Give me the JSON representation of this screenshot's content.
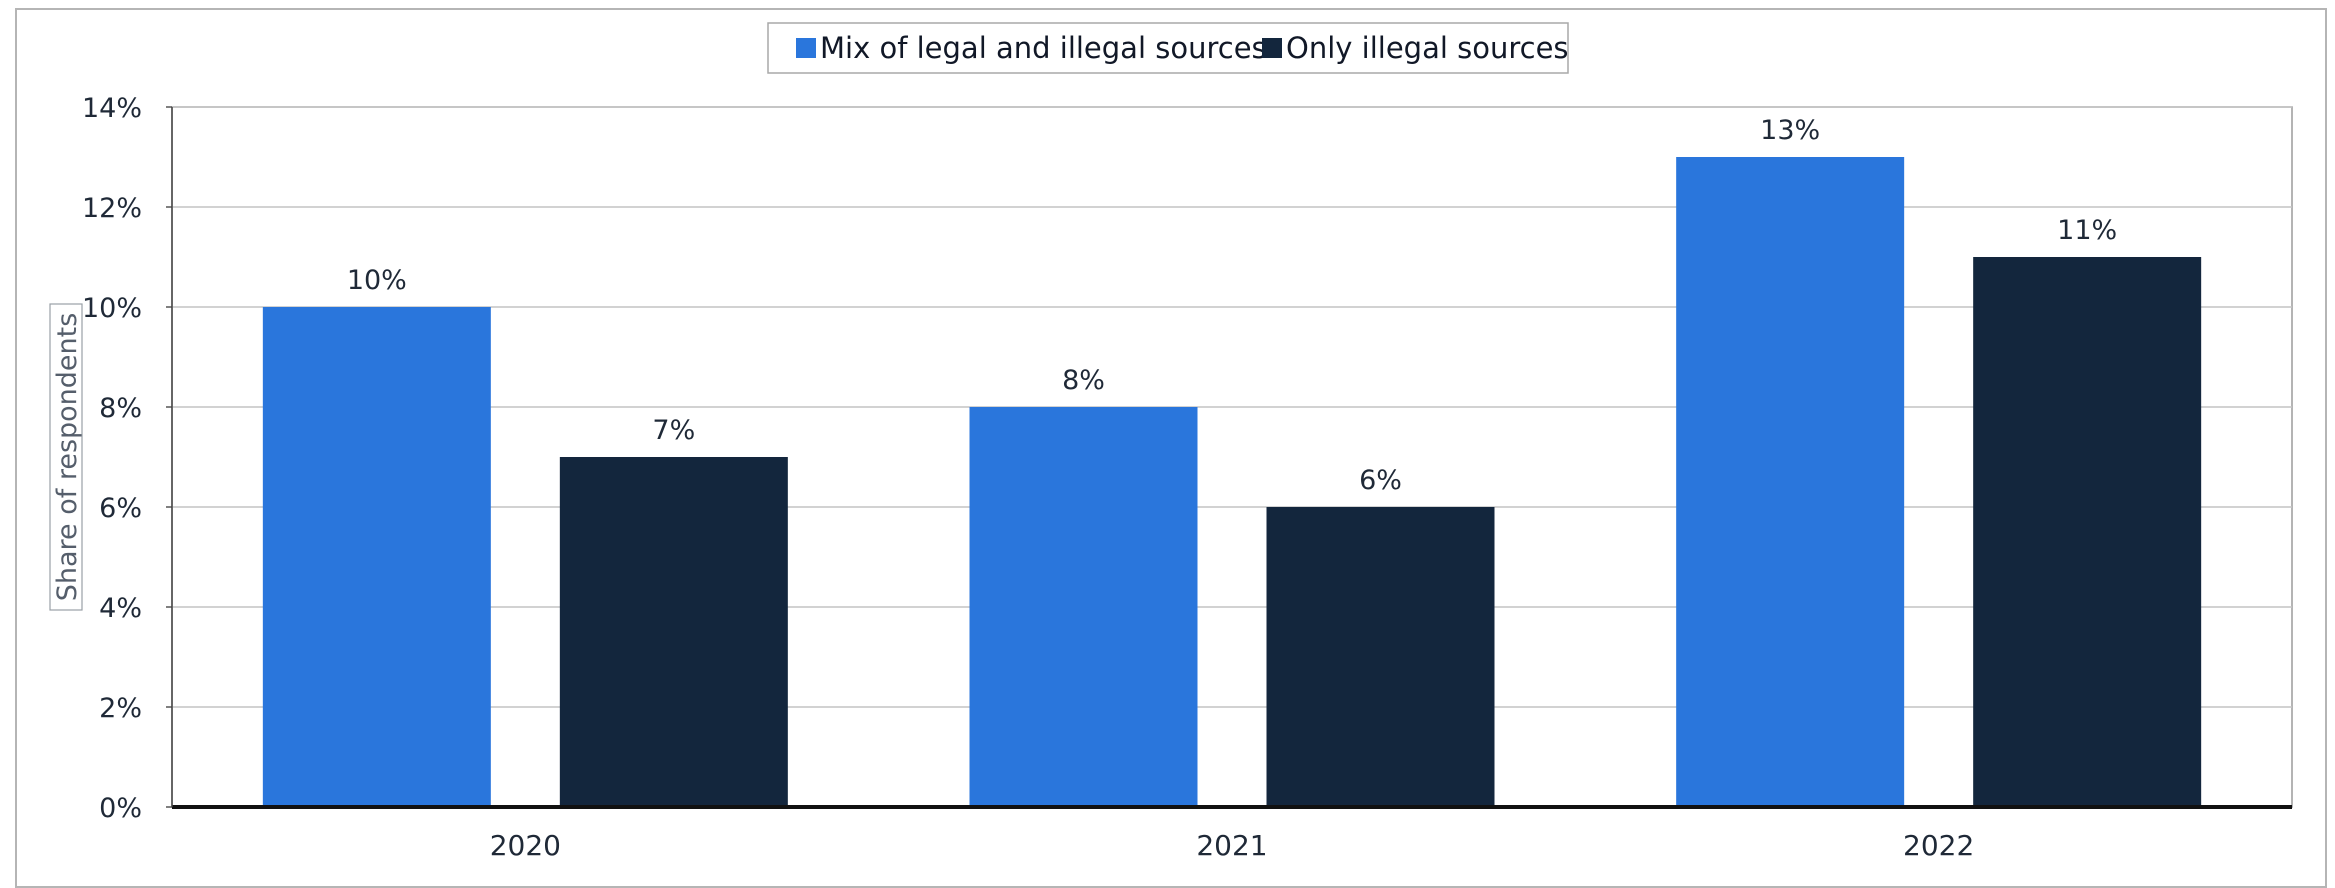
{
  "chart_data": {
    "type": "bar",
    "categories": [
      "2020",
      "2021",
      "2022"
    ],
    "series": [
      {
        "name": "Mix of legal and illegal sources",
        "values": [
          10,
          8,
          13
        ],
        "color": "#2a76dc"
      },
      {
        "name": "Only illegal sources",
        "values": [
          7,
          6,
          11
        ],
        "color": "#13263d"
      }
    ],
    "data_labels": [
      [
        "10%",
        "8%",
        "13%"
      ],
      [
        "7%",
        "6%",
        "11%"
      ]
    ],
    "ylabel": "Share of respondents",
    "ylim": [
      0,
      14
    ],
    "yticks": [
      0,
      2,
      4,
      6,
      8,
      10,
      12,
      14
    ],
    "ytick_labels": [
      "0%",
      "2%",
      "4%",
      "6%",
      "8%",
      "10%",
      "12%",
      "14%"
    ],
    "grid": true,
    "legend_position": "top-center"
  }
}
